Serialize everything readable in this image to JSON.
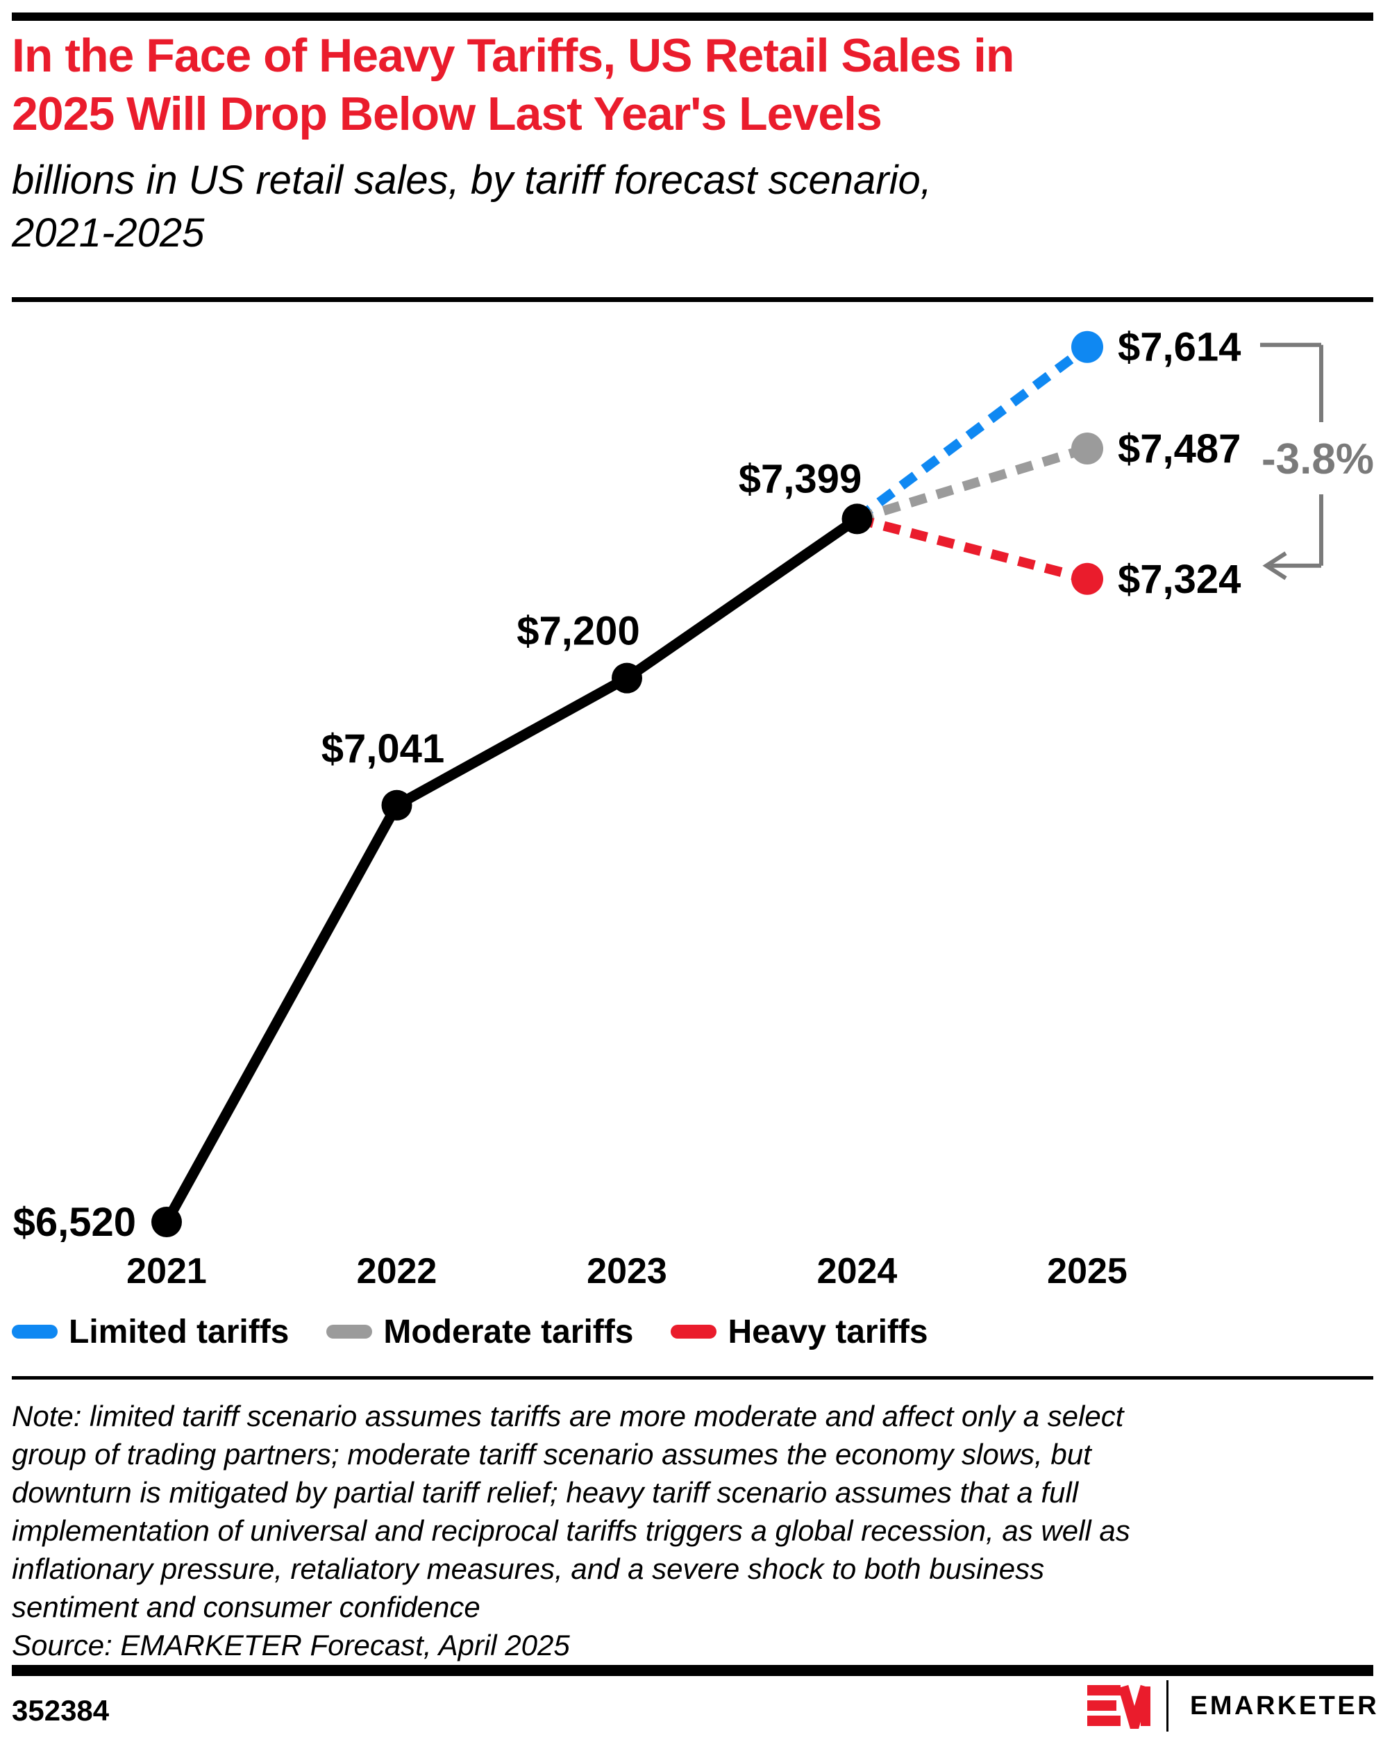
{
  "header": {
    "title_line1": "In the Face of Heavy Tariffs, US Retail Sales in",
    "title_line2": "2025 Will Drop Below Last Year's Levels",
    "subtitle_line1": "billions in US retail sales, by tariff forecast scenario,",
    "subtitle_line2": "2021-2025"
  },
  "chart_data": {
    "type": "line",
    "title": "billions in US retail sales, by tariff forecast scenario, 2021-2025",
    "x": [
      "2021",
      "2022",
      "2023",
      "2024",
      "2025"
    ],
    "historical_series": {
      "name": "US retail sales",
      "values": [
        6520,
        7041,
        7200,
        7399
      ],
      "labels": [
        "$6,520",
        "$7,041",
        "$7,200",
        "$7,399"
      ],
      "color": "#000000"
    },
    "scenarios": [
      {
        "name": "Limited tariffs",
        "value": 7614,
        "label": "$7,614",
        "color": "#0F88F2"
      },
      {
        "name": "Moderate tariffs",
        "value": 7487,
        "label": "$7,487",
        "color": "#9B9B9B"
      },
      {
        "name": "Heavy tariffs",
        "value": 7324,
        "label": "$7,324",
        "color": "#EA1C2C"
      }
    ],
    "annotation": {
      "text": "-3.8%",
      "from_value": 7614,
      "to_value": 7324
    },
    "ylim": [
      6400,
      7700
    ],
    "grid": false,
    "legend_position": "bottom"
  },
  "note": {
    "lines": [
      "Note: limited tariff scenario assumes tariffs are more moderate and affect only a select",
      "group of trading partners; moderate tariff scenario assumes the economy slows, but",
      "downturn is mitigated by partial tariff relief; heavy tariff scenario assumes that a full",
      "implementation of universal and reciprocal tariffs triggers a global recession, as well as",
      "inflationary pressure, retaliatory measures, and a severe shock to both business",
      "sentiment and consumer confidence"
    ],
    "source": "Source: EMARKETER Forecast, April 2025"
  },
  "footer": {
    "chart_id": "352384",
    "brand": "EMARKETER"
  },
  "colors": {
    "accent_red": "#EA1C2C",
    "text": "#000000",
    "bracket_gray": "#7A7A7A"
  }
}
